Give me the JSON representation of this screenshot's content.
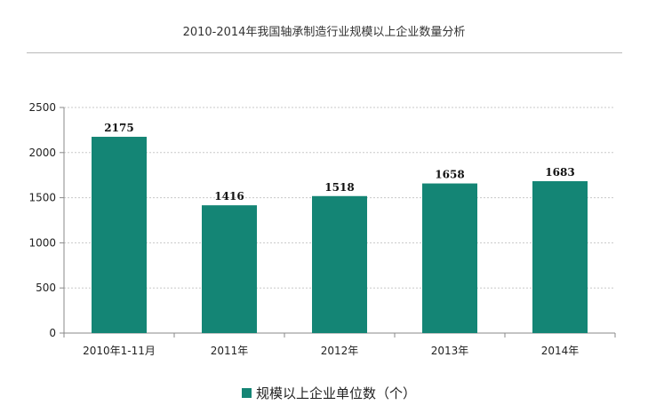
{
  "chart_data": {
    "type": "bar",
    "title": "2010-2014年我国轴承制造行业规模以上企业数量分析",
    "categories": [
      "2010年1-11月",
      "2011年",
      "2012年",
      "2013年",
      "2014年"
    ],
    "series": [
      {
        "name": "规模以上企业单位数（个）",
        "values": [
          2175,
          1416,
          1518,
          1658,
          1683
        ]
      }
    ],
    "ylim": [
      0,
      2500
    ],
    "yticks": [
      0,
      500,
      1000,
      1500,
      2000,
      2500
    ],
    "grid": true,
    "legend": "bottom",
    "colors": {
      "bar": "#148575",
      "grid": "#c8c8c8",
      "axis": "#888888"
    }
  }
}
